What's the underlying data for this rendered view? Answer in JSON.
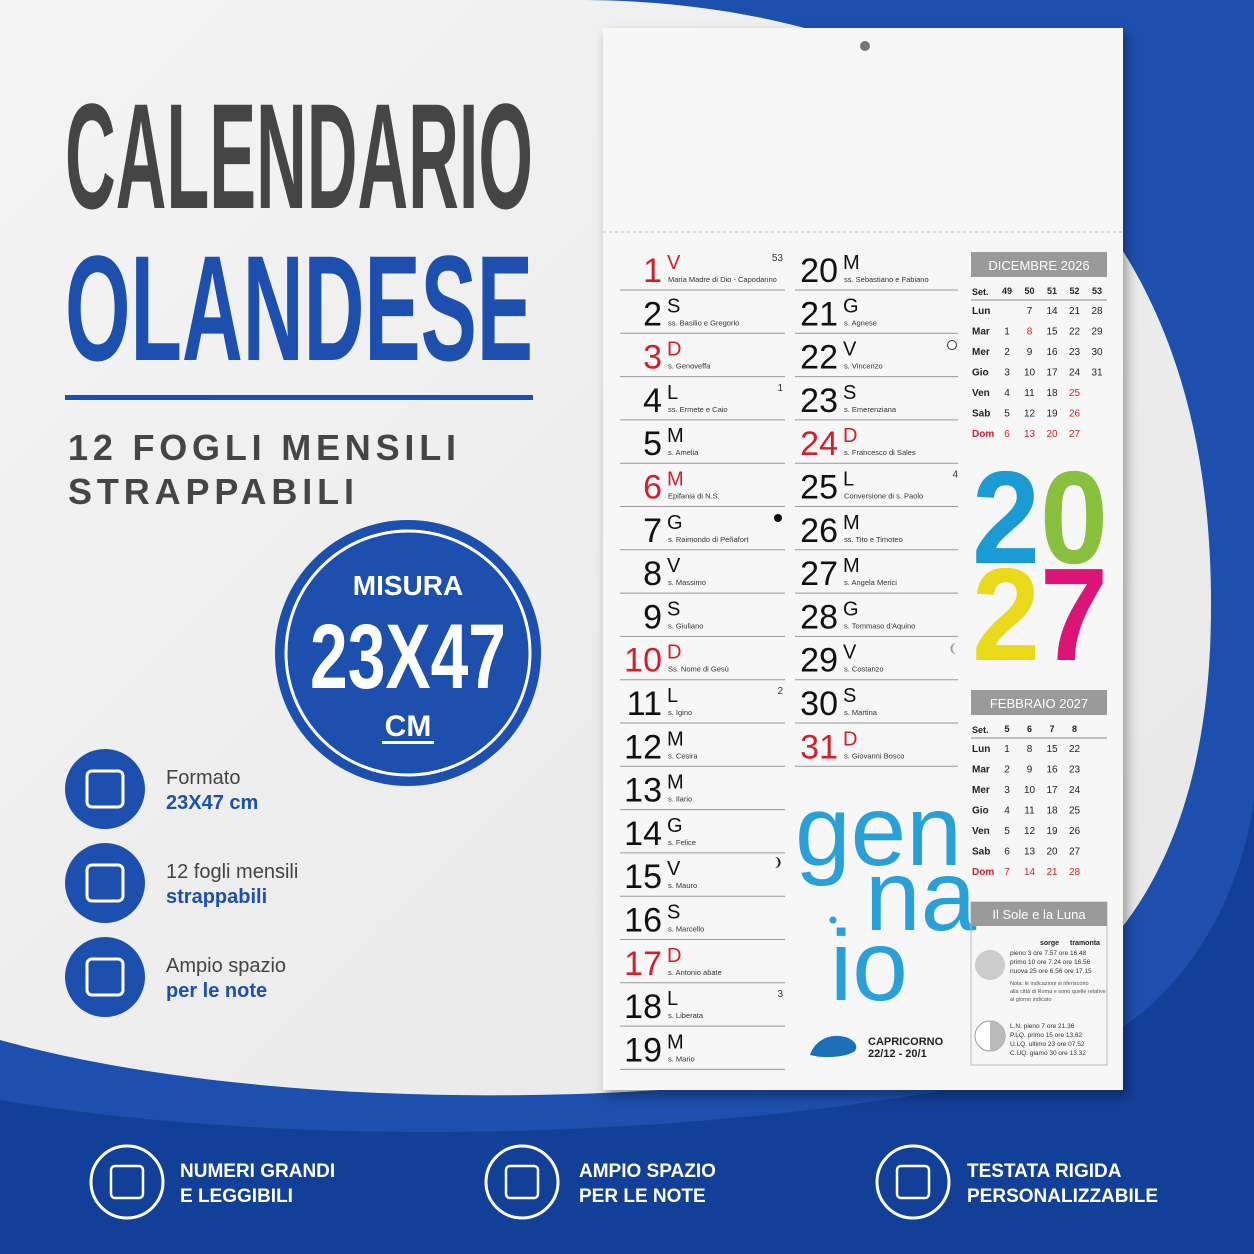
{
  "header": {
    "title_1": "CALENDARIO",
    "title_2": "OLANDESE",
    "subtitle_1": "12 FOGLI MENSILI",
    "subtitle_2": "STRAPPABILI"
  },
  "badge": {
    "label": "MISURA",
    "size": "23X47",
    "unit": "CM"
  },
  "features": [
    {
      "line_1": "Formato",
      "line_2": "23X47 cm"
    },
    {
      "line_1": "12 fogli mensili",
      "line_2": "strappabili"
    },
    {
      "line_1": "Ampio spazio",
      "line_2": "per le note"
    }
  ],
  "bottom": [
    {
      "line_1": "NUMERI GRANDI",
      "line_2": "E LEGGIBILI"
    },
    {
      "line_1": "AMPIO SPAZIO",
      "line_2": "PER LE NOTE"
    },
    {
      "line_1": "TESTATA RIGIDA",
      "line_2": "PERSONALIZZABILE"
    }
  ],
  "calendar": {
    "days": [
      {
        "num": 1,
        "letter": "V",
        "saint": "Maria Madre di Dio - Capodanno",
        "red": true,
        "week": 53
      },
      {
        "num": 2,
        "letter": "S",
        "saint": "ss. Basilio e Gregorio"
      },
      {
        "num": 3,
        "letter": "D",
        "saint": "s. Genoveffa",
        "red": true
      },
      {
        "num": 4,
        "letter": "L",
        "saint": "ss. Ermete e Caio",
        "week": 1
      },
      {
        "num": 5,
        "letter": "M",
        "saint": "s. Amelia"
      },
      {
        "num": 6,
        "letter": "M",
        "saint": "Epifania di N.S.",
        "red": true
      },
      {
        "num": 7,
        "letter": "G",
        "saint": "s. Raimondo di Peñafort"
      },
      {
        "num": 8,
        "letter": "V",
        "saint": "s. Massimo"
      },
      {
        "num": 9,
        "letter": "S",
        "saint": "s. Giuliano"
      },
      {
        "num": 10,
        "letter": "D",
        "saint": "Ss. Nome di Gesù",
        "red": true
      },
      {
        "num": 11,
        "letter": "L",
        "saint": "s. Igino",
        "week": 2
      },
      {
        "num": 12,
        "letter": "M",
        "saint": "s. Cesira"
      },
      {
        "num": 13,
        "letter": "M",
        "saint": "s. Ilario"
      },
      {
        "num": 14,
        "letter": "G",
        "saint": "s. Felice"
      },
      {
        "num": 15,
        "letter": "V",
        "saint": "s. Mauro"
      },
      {
        "num": 16,
        "letter": "S",
        "saint": "s. Marcello"
      },
      {
        "num": 17,
        "letter": "D",
        "saint": "s. Antonio abate",
        "red": true
      },
      {
        "num": 18,
        "letter": "L",
        "saint": "s. Liberata",
        "week": 3
      },
      {
        "num": 19,
        "letter": "M",
        "saint": "s. Mario"
      },
      {
        "num": 20,
        "letter": "M",
        "saint": "ss. Sebastiano e Fabiano"
      },
      {
        "num": 21,
        "letter": "G",
        "saint": "s. Agnese"
      },
      {
        "num": 22,
        "letter": "V",
        "saint": "s. Vincenzo"
      },
      {
        "num": 23,
        "letter": "S",
        "saint": "s. Emerenziana"
      },
      {
        "num": 24,
        "letter": "D",
        "saint": "s. Francesco di Sales",
        "red": true
      },
      {
        "num": 25,
        "letter": "L",
        "saint": "Conversione di s. Paolo",
        "week": 4
      },
      {
        "num": 26,
        "letter": "M",
        "saint": "ss. Tito e Timoteo"
      },
      {
        "num": 27,
        "letter": "M",
        "saint": "s. Angela Merici"
      },
      {
        "num": 28,
        "letter": "G",
        "saint": "s. Tommaso d'Aquino"
      },
      {
        "num": 29,
        "letter": "V",
        "saint": "s. Costanzo"
      },
      {
        "num": 30,
        "letter": "S",
        "saint": "s. Martina"
      },
      {
        "num": 31,
        "letter": "D",
        "saint": "s. Giovanni Bosco",
        "red": true
      }
    ],
    "month": [
      "gen",
      "na",
      "io"
    ],
    "year": [
      "2",
      "0",
      "2",
      "7"
    ],
    "mini": [
      {
        "title": "DICEMBRE 2026",
        "head": "Set.",
        "weeks": [
          49,
          50,
          51,
          52,
          53
        ],
        "rows": [
          {
            "label": "Lun",
            "days": [
              null,
              7,
              14,
              21,
              28
            ]
          },
          {
            "label": "Mar",
            "days": [
              1,
              {
                "text": 8,
                "red": true
              },
              15,
              22,
              29
            ]
          },
          {
            "label": "Mer",
            "days": [
              2,
              9,
              16,
              23,
              30
            ]
          },
          {
            "label": "Gio",
            "days": [
              3,
              10,
              17,
              24,
              31
            ]
          },
          {
            "label": "Ven",
            "days": [
              4,
              11,
              18,
              {
                "text": 25,
                "red": true
              }
            ]
          },
          {
            "label": "Sab",
            "days": [
              5,
              12,
              19,
              {
                "text": 26,
                "red": true
              }
            ]
          },
          {
            "label": "Dom",
            "days": [
              6,
              13,
              20,
              27
            ],
            "red": true
          }
        ]
      },
      {
        "title": "FEBBRAIO 2027",
        "head": "Set.",
        "weeks": [
          5,
          6,
          7,
          8
        ],
        "rows": [
          {
            "label": "Lun",
            "days": [
              1,
              8,
              15,
              22
            ]
          },
          {
            "label": "Mar",
            "days": [
              2,
              9,
              16,
              23
            ]
          },
          {
            "label": "Mer",
            "days": [
              3,
              10,
              17,
              24
            ]
          },
          {
            "label": "Gio",
            "days": [
              4,
              11,
              18,
              25
            ]
          },
          {
            "label": "Ven",
            "days": [
              5,
              12,
              19,
              26
            ]
          },
          {
            "label": "Sab",
            "days": [
              6,
              13,
              20,
              27
            ]
          },
          {
            "label": "Dom",
            "days": [
              7,
              14,
              21,
              28
            ],
            "red": true
          }
        ]
      }
    ],
    "sun_moon": {
      "title": "Il Sole e la Luna",
      "col_1": "sorge",
      "col_2": "tramonta",
      "sun": [
        "pieno  3  ore 7.57  ore 16.48",
        "primo 10  ore 7.24  ore 16.56",
        "nuova 25  ore 6.56  ore 17.15"
      ],
      "note": [
        "Nota: le indicazioni si riferiscono",
        "alla città di Roma e sono quelle relative",
        "al giorno indicato"
      ],
      "moon": [
        "L.N.  pieno  7  ore 21.36",
        "P.LQ.  primo 15  ore 13.62",
        "U.LQ.  ultimo 23  ore 07.52",
        "C.UQ.  giamo 30  ore 13.32"
      ]
    },
    "sign": {
      "name": "CAPRICORNO",
      "dates": "22/12 - 20/1"
    }
  }
}
